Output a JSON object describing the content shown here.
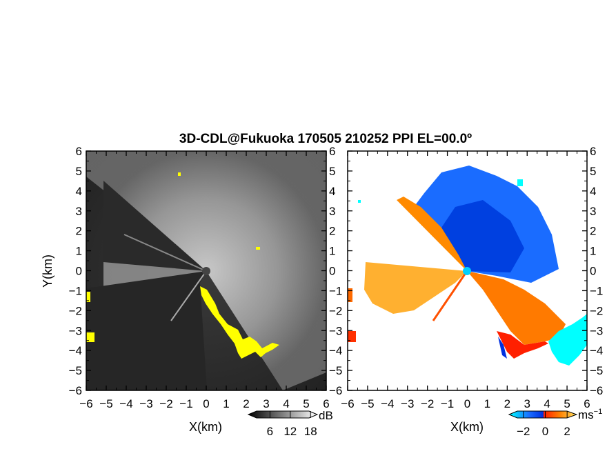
{
  "title": "3D-CDL@Fukuoka 170505 210252 PPI EL=00.0º",
  "chart_data": [
    {
      "type": "heatmap",
      "panel": "left",
      "xlabel": "X(km)",
      "ylabel": "Y(km)",
      "xlim": [
        -6,
        6
      ],
      "ylim": [
        -6,
        6
      ],
      "xticks": [
        "−6",
        "−5",
        "−4",
        "−3",
        "−2",
        "−1",
        "0",
        "1",
        "2",
        "3",
        "4",
        "5",
        "6"
      ],
      "yticks": [
        "6",
        "5",
        "4",
        "3",
        "2",
        "1",
        "0",
        "−1",
        "−2",
        "−3",
        "−4",
        "−5",
        "−6"
      ],
      "colorbar": {
        "unit": "dB",
        "ticks": [
          "6",
          "12",
          "18"
        ],
        "range": [
          0,
          20
        ],
        "colors": [
          "#000000",
          "#ffffff"
        ]
      },
      "highlight_color": "#ffff00",
      "background_color": "#2a2a2a"
    },
    {
      "type": "heatmap",
      "panel": "right",
      "xlabel": "X(km)",
      "xlim": [
        -6,
        6
      ],
      "ylim": [
        -6,
        6
      ],
      "xticks": [
        "−6",
        "−5",
        "−4",
        "−3",
        "−2",
        "−1",
        "0",
        "1",
        "2",
        "3",
        "4",
        "5",
        "6"
      ],
      "yticks": [
        "6",
        "5",
        "4",
        "3",
        "2",
        "1",
        "0",
        "−1",
        "−2",
        "−3",
        "−4",
        "−5",
        "−6"
      ],
      "colorbar": {
        "unit": "ms",
        "unit_sup": "−1",
        "ticks": [
          "−2",
          "0",
          "2"
        ],
        "range": [
          -3,
          3
        ],
        "colors": [
          "#00ffff",
          "#0040ff",
          "#ff0000",
          "#ffd040"
        ]
      },
      "background_color": "#ffffff"
    }
  ]
}
